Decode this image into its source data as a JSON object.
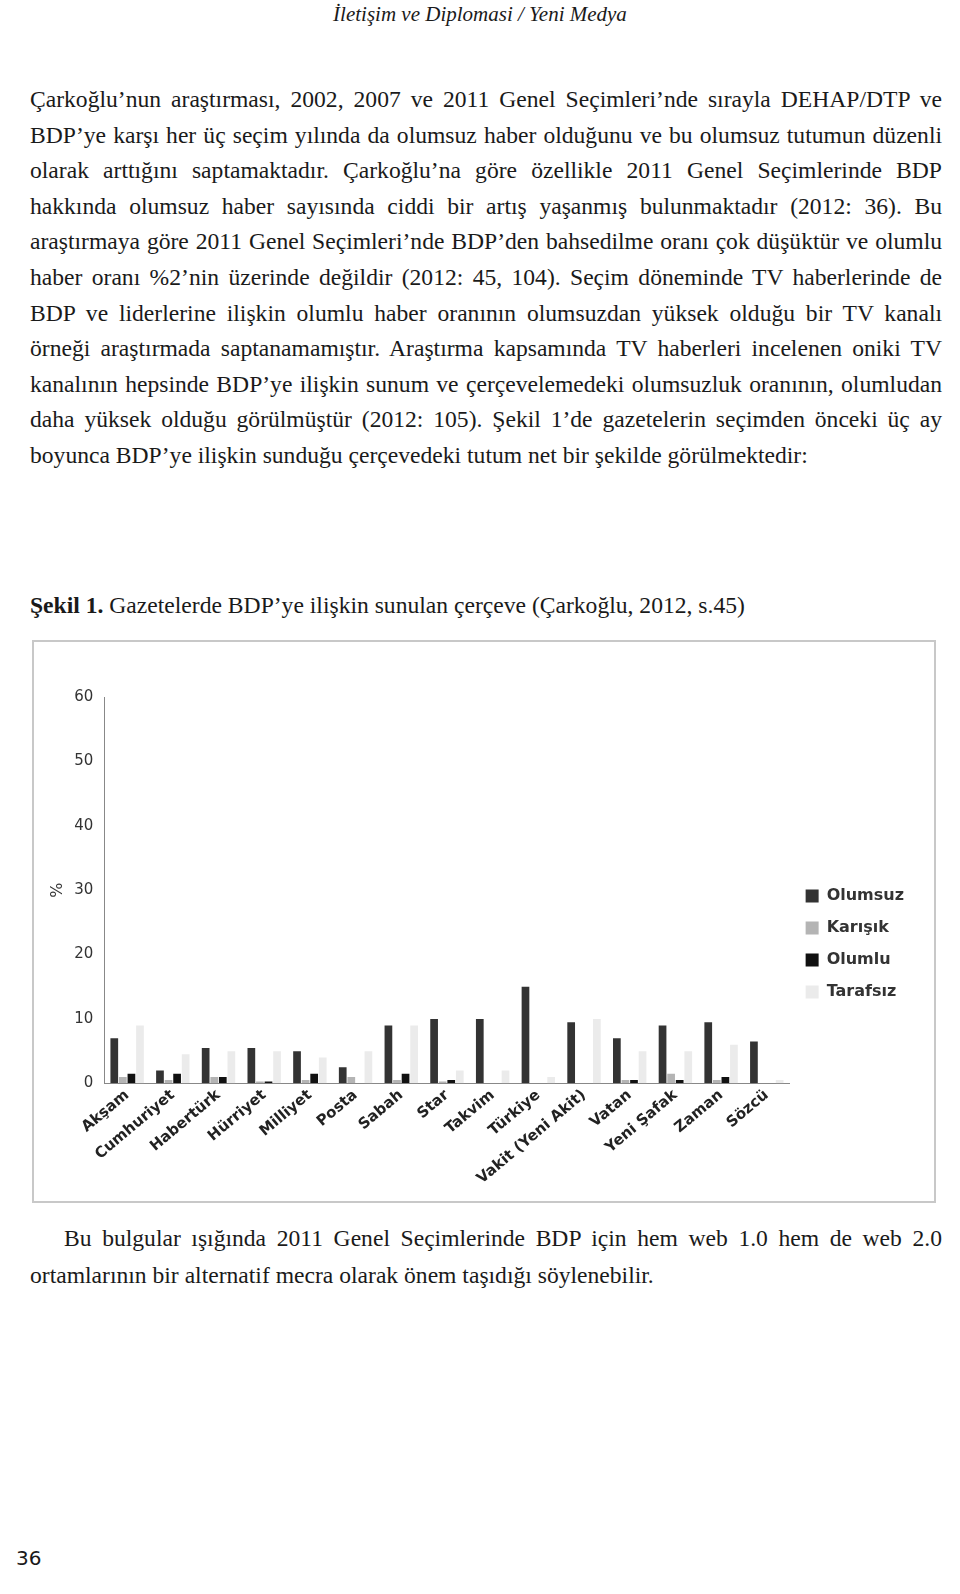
{
  "header": "İletişim ve Diplomasi / Yeni Medya",
  "paragraph": "Çarkoğlu’nun araştırması, 2002, 2007 ve 2011 Genel Seçimleri’nde sırayla DEHAP/DTP ve BDP’ye karşı her üç seçim yılında da olumsuz haber olduğunu ve bu olumsuz tutumun düzenli olarak arttığını saptamaktadır. Çarkoğlu’na göre özellikle 2011 Genel Seçimlerinde BDP hakkında olumsuz haber sayısında ciddi bir artış yaşanmış bulunmaktadır (2012: 36). Bu araştırmaya göre 2011 Genel Seçimleri’nde BDP’den bahsedilme oranı çok düşüktür ve olumlu haber oranı %2’nin üzerinde değildir (2012: 45, 104). Seçim döneminde TV haberlerinde de BDP ve liderlerine ilişkin olumlu haber oranının olumsuzdan yüksek olduğu bir TV kanalı örneği araştırmada saptanamamıştır. Araştırma kapsamında TV haberleri incelenen oniki TV kanalının hepsinde BDP’ye ilişkin sunum ve çerçevelemedeki olumsuzluk oranının, olumludan daha yüksek olduğu görülmüştür (2012: 105). Şekil 1’de gazetelerin seçimden önceki üç ay boyunca BDP’ye ilişkin sunduğu çerçevedeki tutum net bir şekilde görülmektedir:",
  "caption": {
    "label": "Şekil 1.",
    "text": "Gazetelerde BDP’ye ilişkin sunulan çerçeve (Çarkoğlu, 2012, s.45)"
  },
  "chart_data": {
    "type": "bar",
    "y_label": "%",
    "categories": [
      "Akşam",
      "Cumhuriyet",
      "Habertürk",
      "Hürriyet",
      "Milliyet",
      "Posta",
      "Sabah",
      "Star",
      "Takvim",
      "Türkiye",
      "Vakit (Yeni Akit)",
      "Vatan",
      "Yeni Şafak",
      "Zaman",
      "Sözcü"
    ],
    "series": [
      {
        "name": "Olumsuz",
        "color": "#333333",
        "values": [
          7,
          2,
          5.5,
          5.5,
          5,
          2.5,
          9,
          10,
          10,
          15,
          9.5,
          7,
          9,
          9.5,
          6.5
        ]
      },
      {
        "name": "Karışık",
        "color": "#b4b4b4",
        "values": [
          1,
          0.5,
          1,
          0.3,
          0.5,
          1,
          0.5,
          0.3,
          0,
          0,
          0,
          0.5,
          1.5,
          0.5,
          0
        ]
      },
      {
        "name": "Olumlu",
        "color": "#111111",
        "values": [
          1.5,
          1.5,
          1,
          0.3,
          1.5,
          0,
          1.5,
          0.5,
          0,
          0,
          0,
          0.5,
          0.5,
          1,
          0
        ]
      },
      {
        "name": "Tarafsız",
        "color": "#ebebeb",
        "values": [
          9,
          4.5,
          5,
          5,
          4,
          5,
          9,
          2,
          2,
          1,
          10,
          5,
          5,
          6,
          0.5
        ]
      }
    ],
    "ylim": [
      0,
      60
    ],
    "yticks": [
      0,
      10,
      20,
      30,
      40,
      50,
      60
    ],
    "grid": false,
    "legend": "right"
  },
  "closing": "Bu bulgular ışığında 2011 Genel Seçimlerinde BDP için hem web 1.0 hem de web 2.0 ortamlarının bir alternatif mecra olarak önem taşıdığı söylenebilir.",
  "page_number": "36"
}
